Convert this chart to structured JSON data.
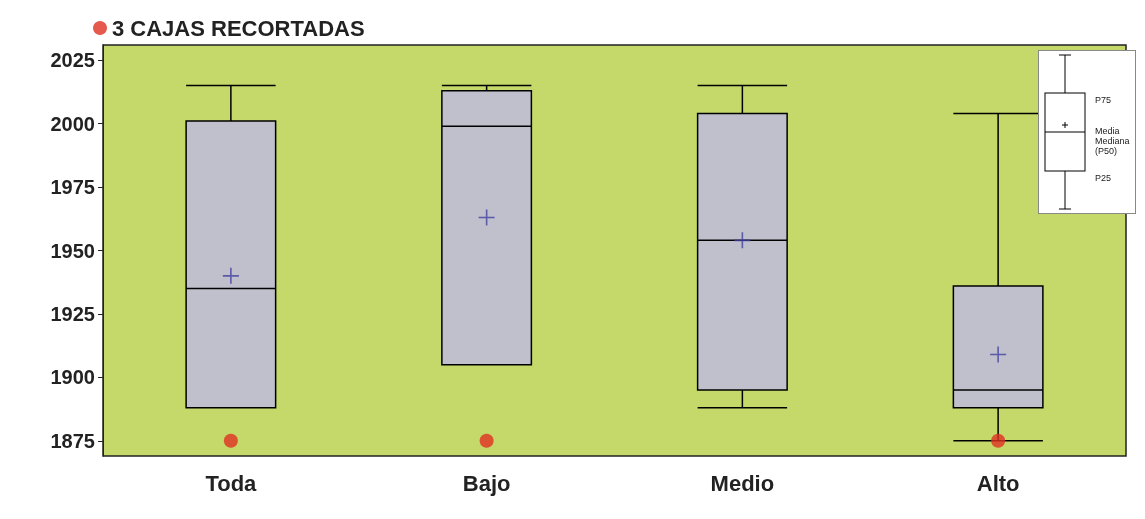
{
  "chart_data": {
    "type": "box",
    "categories": [
      "Toda",
      "Bajo",
      "Medio",
      "Alto"
    ],
    "series": [
      {
        "color": "#c0c0cc",
        "boxes": [
          {
            "low": 1888,
            "q1": 1888,
            "median": 1935,
            "q3": 2001,
            "high": 2015,
            "mean": 1940
          },
          {
            "low": 1905,
            "q1": 1905,
            "median": 1999,
            "q3": 2013,
            "high": 2015,
            "mean": 1963
          },
          {
            "low": 1888,
            "q1": 1895,
            "median": 1954,
            "q3": 2004,
            "high": 2015,
            "mean": 1954
          },
          {
            "low": 1875,
            "q1": 1888,
            "median": 1895,
            "q3": 1936,
            "high": 2004,
            "mean": 1909
          }
        ]
      },
      {
        "type": "scatter",
        "name": "3 CAJAS RECORTADAS",
        "color": "#e03020",
        "x": [
          "Toda",
          "Bajo",
          "Alto"
        ],
        "values": [
          1875,
          1875,
          1875
        ]
      }
    ],
    "ylim": [
      1869,
      2031
    ],
    "yticks": [
      1875,
      1900,
      1925,
      1950,
      1975,
      2000,
      2025
    ],
    "grid": false,
    "legend": "top left",
    "annotations": [
      "P75",
      "Media",
      "Mediana (P50)",
      "P25"
    ]
  }
}
